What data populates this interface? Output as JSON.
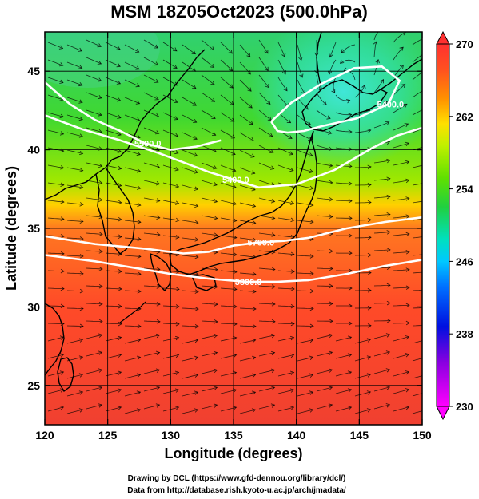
{
  "chart_data": {
    "type": "heatmap",
    "title": "MSM 18Z05Oct2023 (500.0hPa)",
    "xlabel": "Longitude (degrees)",
    "ylabel": "Latitude  (degrees)",
    "xlim": [
      120,
      150
    ],
    "ylim": [
      22.5,
      47.5
    ],
    "xticks": [
      120,
      125,
      130,
      135,
      140,
      145,
      150
    ],
    "yticks": [
      25,
      30,
      35,
      40,
      45
    ],
    "grid": true,
    "colorbar": {
      "min": 230,
      "max": 270,
      "ticks": [
        230,
        238,
        246,
        254,
        262,
        270
      ],
      "extend": "both"
    },
    "contours": [
      {
        "label": "5400.0",
        "lon": [
          120,
          123,
          126,
          129,
          131,
          133,
          135,
          137,
          140,
          143,
          146,
          148,
          150
        ],
        "lat": [
          42.2,
          41.3,
          40.6,
          39.8,
          39.2,
          38.6,
          38.1,
          37.6,
          37.8,
          38.7,
          40.1,
          40.9,
          41.4
        ]
      },
      {
        "label": "5400.0",
        "lon": [
          138.0,
          139.6,
          142,
          144.6,
          146.8,
          148.2,
          147.3,
          144.8,
          142,
          140.6,
          139.3,
          138.5,
          138.0
        ],
        "lat": [
          41.8,
          43.0,
          44.2,
          45.2,
          45.3,
          44.4,
          42.9,
          42.0,
          41.5,
          41.2,
          41.1,
          41.2,
          41.8
        ]
      },
      {
        "label": "5700.0",
        "lon": [
          120,
          124,
          128,
          131,
          133,
          135,
          137,
          139,
          141,
          144,
          147,
          150
        ],
        "lat": [
          34.5,
          34.0,
          33.7,
          33.4,
          33.5,
          33.9,
          34.1,
          34.2,
          34.4,
          35.0,
          35.4,
          35.7
        ]
      },
      {
        "label": "5800.0",
        "lon": [
          120,
          124,
          127,
          130,
          133,
          136,
          138.5,
          141,
          144,
          147,
          150
        ],
        "lat": [
          33.3,
          32.9,
          32.5,
          32.1,
          31.8,
          31.6,
          31.6,
          31.7,
          32.1,
          32.6,
          33.0
        ]
      },
      {
        "label": "5500.0",
        "lon": [
          120,
          122,
          124,
          126,
          128,
          130,
          132,
          134
        ],
        "lat": [
          44.3,
          42.9,
          41.9,
          41.2,
          40.4,
          40.0,
          40.2,
          40.6
        ]
      }
    ]
  },
  "credits": {
    "line1": "Drawing by DCL (https://www.gfd-dennou.org/library/dcl/)",
    "line2": "Data from http://database.rish.kyoto-u.ac.jp/arch/jmadata/"
  },
  "colors": {
    "frame": "#000000",
    "contour": "#ffffff",
    "coast": "#000000",
    "stream": "#000000"
  }
}
